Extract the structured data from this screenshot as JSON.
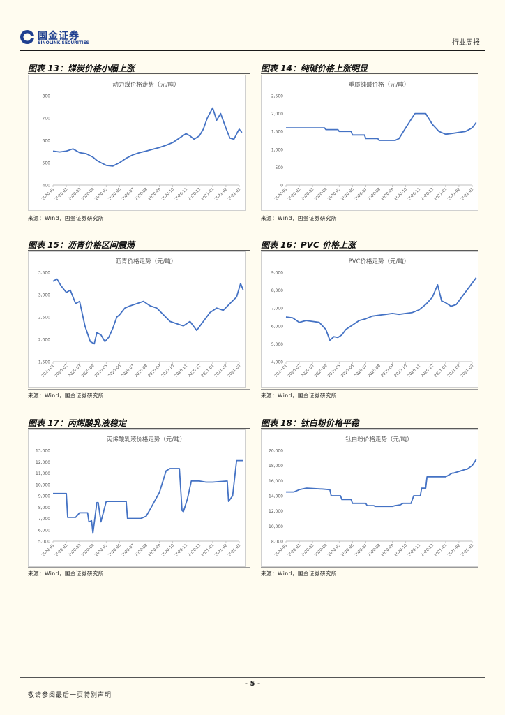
{
  "header": {
    "logo_cn": "国金证券",
    "logo_en": "SINOLINK SECURITIES",
    "report_type": "行业周报"
  },
  "colors": {
    "line": "#4472c4",
    "logo": "#1f3f8f"
  },
  "panels": [
    {
      "id": "p13",
      "title": "图表 13：煤炭价格小幅上涨",
      "source": "来源：Wind，国金证券研究所"
    },
    {
      "id": "p14",
      "title": "图表 14：纯碱价格上涨明显",
      "source": "来源：Wind，国金证券研究所"
    },
    {
      "id": "p15",
      "title": "图表 15：沥青价格区间震荡",
      "source": "来源：Wind，国金证券研究所"
    },
    {
      "id": "p16",
      "title": "图表 16：PVC 价格上涨",
      "source": "来源：Wind，国金证券研究所"
    },
    {
      "id": "p17",
      "title": "图表 17：丙烯酸乳液稳定",
      "source": "来源：Wind，国金证券研究所"
    },
    {
      "id": "p18",
      "title": "图表 18：钛白粉价格平稳",
      "source": "来源：Wind，国金证券研究所"
    }
  ],
  "chart_data": [
    {
      "type": "line",
      "title": "动力煤价格走势（元/吨）",
      "ylim": [
        400,
        800
      ],
      "yticks": [
        "400",
        "500",
        "600",
        "700",
        "800"
      ],
      "xticks": [
        "2020-01",
        "2020-02",
        "2020-03",
        "2020-04",
        "2020-05",
        "2020-06",
        "2020-07",
        "2020-08",
        "2020-09",
        "2020-10",
        "2020-11",
        "2020-12",
        "2021-01",
        "2021-02",
        "2021-03"
      ],
      "x": [
        0,
        0.5,
        1,
        1.5,
        2,
        2.5,
        3,
        3.3,
        3.6,
        4,
        4.5,
        5,
        5.5,
        6,
        6.5,
        7,
        7.5,
        8,
        8.5,
        9,
        9.5,
        10,
        10.3,
        10.6,
        11,
        11.3,
        11.6,
        12,
        12.3,
        12.6,
        13,
        13.3,
        13.6,
        13.9,
        14,
        14.2
      ],
      "values": [
        552,
        548,
        552,
        562,
        545,
        540,
        525,
        510,
        500,
        488,
        485,
        500,
        520,
        535,
        545,
        552,
        560,
        568,
        578,
        590,
        610,
        630,
        620,
        605,
        620,
        650,
        700,
        745,
        690,
        720,
        655,
        610,
        605,
        640,
        650,
        635
      ]
    },
    {
      "type": "line",
      "title": "重质纯碱价格（元/吨）",
      "ylim": [
        0,
        2500
      ],
      "yticks": [
        "0",
        "500",
        "1,000",
        "1,500",
        "2,000",
        "2,500"
      ],
      "xticks": [
        "2020-01",
        "2020-02",
        "2020-03",
        "2020-04",
        "2020-05",
        "2020-06",
        "2020-07",
        "2020-08",
        "2020-09",
        "2020-10",
        "2020-11",
        "2020-12",
        "2021-01",
        "2021-02",
        "2021-03"
      ],
      "x": [
        0,
        2.9,
        3,
        3.9,
        4,
        4.9,
        5,
        5.9,
        6,
        6.9,
        7,
        8.2,
        8.5,
        9,
        9.6,
        9.7,
        10.5,
        11,
        11.5,
        12,
        12.6,
        13.5,
        14,
        14.3
      ],
      "values": [
        1600,
        1600,
        1550,
        1550,
        1500,
        1500,
        1400,
        1400,
        1300,
        1300,
        1250,
        1250,
        1300,
        1600,
        1950,
        2000,
        2000,
        1700,
        1500,
        1420,
        1450,
        1500,
        1600,
        1750
      ]
    },
    {
      "type": "line",
      "title": "沥青价格走势（元/吨）",
      "ylim": [
        1500,
        3500
      ],
      "yticks": [
        "1,500",
        "2,000",
        "2,500",
        "3,000",
        "3,500"
      ],
      "xticks": [
        "2020-01",
        "2020-02",
        "2020-03",
        "2020-04",
        "2020-05",
        "2020-06",
        "2020-07",
        "2020-08",
        "2020-09",
        "2020-10",
        "2020-11",
        "2020-12",
        "2021-01",
        "2021-02",
        "2021-03"
      ],
      "x": [
        0,
        0.3,
        0.6,
        1,
        1.3,
        1.7,
        2,
        2.4,
        2.8,
        3.1,
        3.3,
        3.6,
        3.9,
        4.2,
        4.5,
        4.8,
        5,
        5.4,
        5.8,
        6.3,
        6.8,
        7.3,
        7.8,
        8.3,
        8.8,
        9.3,
        9.8,
        10.3,
        10.8,
        11.3,
        11.8,
        12.3,
        12.8,
        13.3,
        13.8,
        14.1,
        14.3
      ],
      "values": [
        3300,
        3350,
        3200,
        3050,
        3100,
        2800,
        2850,
        2300,
        1950,
        1900,
        2150,
        2100,
        1950,
        2050,
        2250,
        2500,
        2550,
        2700,
        2750,
        2800,
        2850,
        2750,
        2700,
        2550,
        2400,
        2350,
        2300,
        2400,
        2200,
        2400,
        2600,
        2700,
        2650,
        2800,
        2950,
        3250,
        3100
      ]
    },
    {
      "type": "line",
      "title": "PVC价格走势（元/吨）",
      "ylim": [
        4000,
        9000
      ],
      "yticks": [
        "4,000",
        "5,000",
        "6,000",
        "7,000",
        "8,000",
        "9,000"
      ],
      "xticks": [
        "2020-01",
        "2020-02",
        "2020-03",
        "2020-04",
        "2020-05",
        "2020-06",
        "2020-07",
        "2020-08",
        "2020-09",
        "2020-10",
        "2020-11",
        "2020-12",
        "2021-01",
        "2021-02",
        "2021-03"
      ],
      "x": [
        0,
        0.5,
        1,
        1.5,
        2,
        2.5,
        3,
        3.3,
        3.6,
        3.9,
        4.2,
        4.5,
        5,
        5.5,
        6,
        6.5,
        7,
        7.5,
        8,
        8.5,
        9,
        9.5,
        10,
        10.5,
        11,
        11.4,
        11.7,
        12,
        12.4,
        12.8,
        13.2,
        13.6,
        14,
        14.3
      ],
      "values": [
        6500,
        6450,
        6200,
        6300,
        6250,
        6200,
        5800,
        5200,
        5400,
        5350,
        5500,
        5800,
        6050,
        6300,
        6400,
        6550,
        6600,
        6650,
        6700,
        6650,
        6700,
        6750,
        6900,
        7200,
        7600,
        8300,
        7400,
        7300,
        7100,
        7200,
        7600,
        8000,
        8400,
        8700
      ]
    },
    {
      "type": "line",
      "title": "丙烯酸乳液价格走势（元/吨）",
      "ylim": [
        5000,
        13000
      ],
      "yticks": [
        "5,000",
        "6,000",
        "7,000",
        "8,000",
        "9,000",
        "10,000",
        "11,000",
        "12,000",
        "13,000"
      ],
      "xticks": [
        "2020-01",
        "2020-02",
        "2020-03",
        "2020-04",
        "2020-05",
        "2020-06",
        "2020-07",
        "2020-08",
        "2020-09",
        "2020-10",
        "2020-11",
        "2020-12",
        "2021-01",
        "2021-02",
        "2021-03"
      ],
      "x": [
        0,
        1,
        1.1,
        1.7,
        2,
        2.6,
        2.7,
        2.9,
        3,
        3.3,
        3.4,
        3.6,
        4,
        5.5,
        5.6,
        6.6,
        7,
        7.3,
        8,
        8.5,
        8.8,
        9.5,
        9.7,
        9.8,
        10.1,
        10.4,
        11,
        11.5,
        12,
        13.1,
        13.2,
        13.5,
        13.8,
        14.3
      ],
      "values": [
        9200,
        9200,
        7100,
        7100,
        7500,
        7500,
        6700,
        6800,
        5700,
        8400,
        8400,
        6700,
        8500,
        8500,
        7000,
        7000,
        7200,
        7800,
        9300,
        11200,
        11400,
        11400,
        7700,
        7600,
        8700,
        10300,
        10300,
        10200,
        10200,
        10300,
        8500,
        9000,
        12100,
        12100
      ]
    },
    {
      "type": "line",
      "title": "钛白粉价格走势（元/吨）",
      "ylim": [
        8000,
        20000
      ],
      "yticks": [
        "8,000",
        "10,000",
        "12,000",
        "14,000",
        "16,000",
        "18,000",
        "20,000"
      ],
      "xticks": [
        "2020-01",
        "2020-02",
        "2020-03",
        "2020-04",
        "2020-05",
        "2020-06",
        "2020-07",
        "2020-08",
        "2020-09",
        "2020-10",
        "2020-11",
        "2020-12",
        "2021-01",
        "2021-02",
        "2021-03"
      ],
      "x": [
        0,
        0.6,
        1,
        1.5,
        1.6,
        2.6,
        2.7,
        3.3,
        3.4,
        4.1,
        4.2,
        4.9,
        5,
        6,
        6.1,
        6.6,
        6.7,
        8,
        8.2,
        8.6,
        8.8,
        9.4,
        9.6,
        10.1,
        10.2,
        10.5,
        10.6,
        11,
        11.8,
        12,
        12.5,
        12.6,
        13.5,
        13.6,
        14,
        14.3
      ],
      "values": [
        14500,
        14500,
        14800,
        15000,
        15000,
        14900,
        14900,
        14800,
        14000,
        14000,
        13500,
        13500,
        13000,
        13000,
        12700,
        12700,
        12600,
        12600,
        12700,
        12800,
        13000,
        13000,
        14000,
        14000,
        15000,
        15000,
        16500,
        16500,
        16500,
        16500,
        17000,
        17000,
        17500,
        17500,
        18000,
        18800
      ]
    }
  ],
  "footer": {
    "page_number": "- 5 -",
    "disclaimer": "敬请参阅最后一页特别声明"
  }
}
